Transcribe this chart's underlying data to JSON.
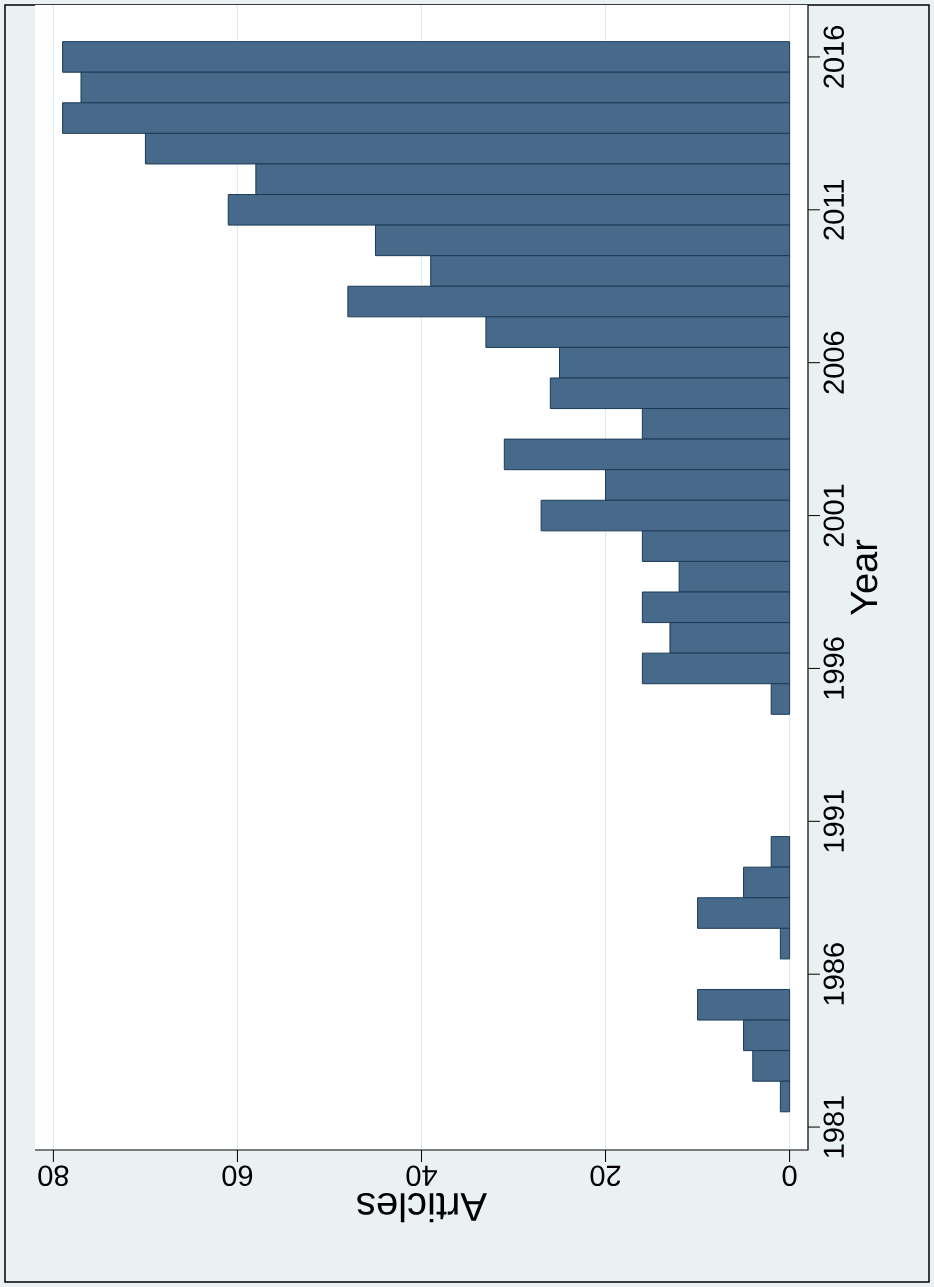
{
  "chart_data": {
    "type": "bar",
    "orientation": "horizontal",
    "xlabel": "Articles",
    "ylabel": "Year",
    "categories": [
      "2016",
      null,
      null,
      null,
      null,
      "2011",
      null,
      null,
      null,
      null,
      "2006",
      null,
      null,
      null,
      null,
      "2001",
      null,
      null,
      null,
      null,
      "1996",
      null,
      null,
      null,
      null,
      "1991",
      null,
      null,
      null,
      null,
      "1986",
      null,
      null,
      null,
      null,
      "1981"
    ],
    "values": [
      79,
      77,
      79,
      70,
      58,
      61,
      45,
      39,
      48,
      33,
      25,
      26,
      16,
      31,
      20,
      27,
      16,
      12,
      16,
      13,
      16,
      2,
      null,
      null,
      null,
      null,
      2,
      5,
      10,
      1,
      null,
      10,
      5,
      4,
      1,
      null
    ],
    "color": "#476a8b",
    "xlim": [
      82,
      -2
    ],
    "xticks": [
      0,
      20,
      40,
      60,
      80
    ],
    "grid": "x"
  }
}
